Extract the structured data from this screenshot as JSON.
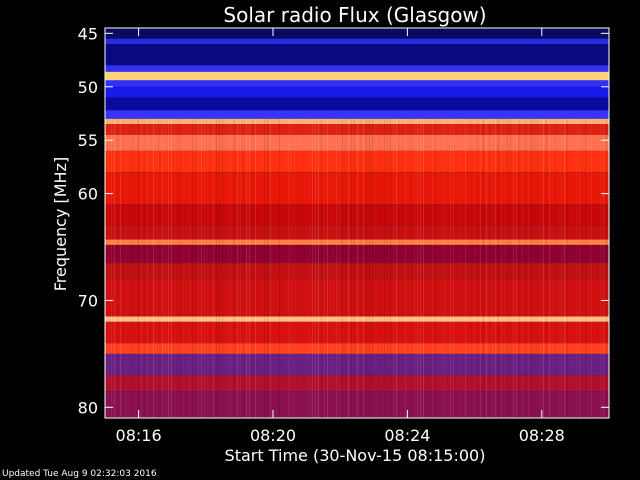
{
  "chart_data": {
    "type": "heatmap",
    "title": "Solar radio Flux (Glasgow)",
    "xlabel": "Start Time (30-Nov-15 08:15:00)",
    "ylabel": "Frequency [MHz]",
    "x_ticks": [
      "08:16",
      "08:20",
      "08:24",
      "08:28"
    ],
    "x_tick_minutes": [
      1,
      5,
      9,
      13
    ],
    "xlim_minutes": [
      0,
      15
    ],
    "y_ticks": [
      45,
      50,
      55,
      60,
      70,
      80
    ],
    "ylim": [
      44.5,
      81
    ],
    "bands": [
      {
        "f0": 44.5,
        "f1": 45.5,
        "color": "#0a0a60"
      },
      {
        "f0": 45.5,
        "f1": 46.0,
        "color": "#2a2ae0"
      },
      {
        "f0": 46.0,
        "f1": 48.0,
        "color": "#0a0a80"
      },
      {
        "f0": 48.0,
        "f1": 48.6,
        "color": "#3030ff"
      },
      {
        "f0": 48.6,
        "f1": 49.4,
        "color": "#ffd07a"
      },
      {
        "f0": 49.4,
        "f1": 50.0,
        "color": "#3030ff"
      },
      {
        "f0": 50.0,
        "f1": 51.0,
        "color": "#1a1ae8"
      },
      {
        "f0": 51.0,
        "f1": 52.2,
        "color": "#0a0a9a"
      },
      {
        "f0": 52.2,
        "f1": 53.0,
        "color": "#3535ff"
      },
      {
        "f0": 53.0,
        "f1": 53.5,
        "color": "#ffb070"
      },
      {
        "f0": 53.5,
        "f1": 54.5,
        "color": "#e02010"
      },
      {
        "f0": 54.5,
        "f1": 56.0,
        "color": "#ff7050"
      },
      {
        "f0": 56.0,
        "f1": 58.0,
        "color": "#ff3010"
      },
      {
        "f0": 58.0,
        "f1": 61.0,
        "color": "#e81808"
      },
      {
        "f0": 61.0,
        "f1": 63.0,
        "color": "#c80808"
      },
      {
        "f0": 63.0,
        "f1": 64.3,
        "color": "#c81010"
      },
      {
        "f0": 64.3,
        "f1": 64.8,
        "color": "#ff8040"
      },
      {
        "f0": 64.8,
        "f1": 66.5,
        "color": "#900030"
      },
      {
        "f0": 66.5,
        "f1": 68.0,
        "color": "#c01010"
      },
      {
        "f0": 68.0,
        "f1": 71.5,
        "color": "#d01010"
      },
      {
        "f0": 71.5,
        "f1": 72.0,
        "color": "#ffc080"
      },
      {
        "f0": 72.0,
        "f1": 74.0,
        "color": "#d81010"
      },
      {
        "f0": 74.0,
        "f1": 75.0,
        "color": "#ff4020"
      },
      {
        "f0": 75.0,
        "f1": 77.0,
        "color": "#6a2080"
      },
      {
        "f0": 77.0,
        "f1": 78.5,
        "color": "#b01030"
      },
      {
        "f0": 78.5,
        "f1": 81.0,
        "color": "#8a1050"
      }
    ],
    "colors": {
      "frame": "#ffffff",
      "background": "#000000"
    }
  },
  "footer": "Updated Tue Aug  9 02:32:03 2016"
}
